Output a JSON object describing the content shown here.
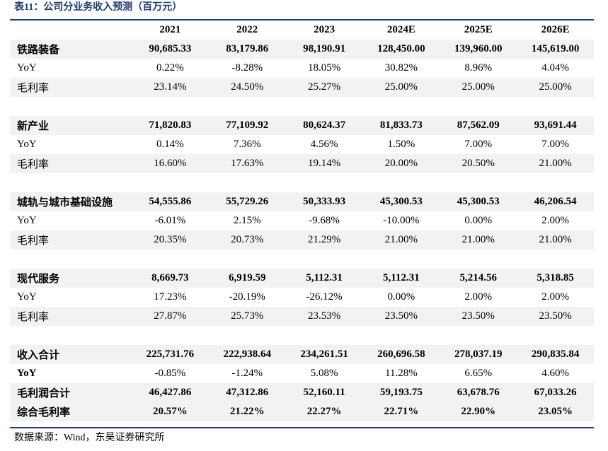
{
  "title": "表11：公司分业务收入预测（百万元）",
  "columns": [
    "",
    "2021",
    "2022",
    "2023",
    "2024E",
    "2025E",
    "2026E"
  ],
  "rows": [
    {
      "label": "铁路装备",
      "values": [
        "90,685.33",
        "83,179.86",
        "98,190.91",
        "128,450.00",
        "139,960.00",
        "145,619.00"
      ],
      "bold": true,
      "shade": true
    },
    {
      "label": "YoY",
      "values": [
        "0.22%",
        "-8.28%",
        "18.05%",
        "30.82%",
        "8.96%",
        "4.04%"
      ],
      "bold": false,
      "shade": false
    },
    {
      "label": "毛利率",
      "values": [
        "23.14%",
        "24.50%",
        "25.27%",
        "25.00%",
        "25.00%",
        "25.00%"
      ],
      "bold": false,
      "shade": true
    },
    {
      "label": "",
      "values": [
        "",
        "",
        "",
        "",
        "",
        ""
      ],
      "bold": false,
      "shade": false,
      "gap": true
    },
    {
      "label": "新产业",
      "values": [
        "71,820.83",
        "77,109.92",
        "80,624.37",
        "81,833.73",
        "87,562.09",
        "93,691.44"
      ],
      "bold": true,
      "shade": true
    },
    {
      "label": "YoY",
      "values": [
        "0.14%",
        "7.36%",
        "4.56%",
        "1.50%",
        "7.00%",
        "7.00%"
      ],
      "bold": false,
      "shade": false
    },
    {
      "label": "毛利率",
      "values": [
        "16.60%",
        "17.63%",
        "19.14%",
        "20.00%",
        "20.50%",
        "21.00%"
      ],
      "bold": false,
      "shade": true
    },
    {
      "label": "",
      "values": [
        "",
        "",
        "",
        "",
        "",
        ""
      ],
      "bold": false,
      "shade": false,
      "gap": true
    },
    {
      "label": "城轨与城市基础设施",
      "values": [
        "54,555.86",
        "55,729.26",
        "50,333.93",
        "45,300.53",
        "45,300.53",
        "46,206.54"
      ],
      "bold": true,
      "shade": true
    },
    {
      "label": "YoY",
      "values": [
        "-6.01%",
        "2.15%",
        "-9.68%",
        "-10.00%",
        "0.00%",
        "2.00%"
      ],
      "bold": false,
      "shade": false
    },
    {
      "label": "毛利率",
      "values": [
        "20.35%",
        "20.73%",
        "21.29%",
        "21.00%",
        "21.00%",
        "21.00%"
      ],
      "bold": false,
      "shade": true
    },
    {
      "label": "",
      "values": [
        "",
        "",
        "",
        "",
        "",
        ""
      ],
      "bold": false,
      "shade": false,
      "gap": true
    },
    {
      "label": "现代服务",
      "values": [
        "8,669.73",
        "6,919.59",
        "5,112.31",
        "5,112.31",
        "5,214.56",
        "5,318.85"
      ],
      "bold": true,
      "shade": true
    },
    {
      "label": "YoY",
      "values": [
        "17.23%",
        "-20.19%",
        "-26.12%",
        "0.00%",
        "2.00%",
        "2.00%"
      ],
      "bold": false,
      "shade": false
    },
    {
      "label": "毛利率",
      "values": [
        "27.87%",
        "25.73%",
        "23.53%",
        "23.50%",
        "23.50%",
        "23.50%"
      ],
      "bold": false,
      "shade": true
    },
    {
      "label": "",
      "values": [
        "",
        "",
        "",
        "",
        "",
        ""
      ],
      "bold": false,
      "shade": false,
      "gap": true
    },
    {
      "label": "收入合计",
      "values": [
        "225,731.76",
        "222,938.64",
        "234,261.51",
        "260,696.58",
        "278,037.19",
        "290,835.84"
      ],
      "bold": true,
      "shade": true
    },
    {
      "label": "YoY",
      "values": [
        "-0.85%",
        "-1.24%",
        "5.08%",
        "11.28%",
        "6.65%",
        "4.60%"
      ],
      "bold": true,
      "boldValues": false,
      "shade": false
    },
    {
      "label": "毛利润合计",
      "values": [
        "46,427.86",
        "47,312.86",
        "52,160.11",
        "59,193.75",
        "63,678.76",
        "67,033.26"
      ],
      "bold": true,
      "shade": true
    },
    {
      "label": "综合毛利率",
      "values": [
        "20.57%",
        "21.22%",
        "22.27%",
        "22.71%",
        "22.90%",
        "23.05%"
      ],
      "bold": true,
      "shade": true
    }
  ],
  "source": "数据来源：Wind，东吴证券研究所",
  "colors": {
    "accent": "#1f3a6e",
    "shade": "#f2f2f2"
  }
}
